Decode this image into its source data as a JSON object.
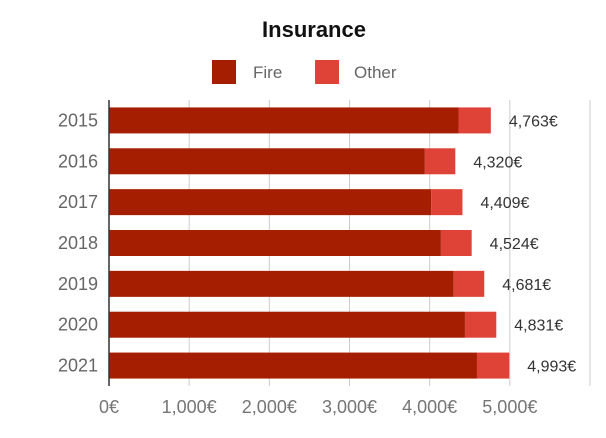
{
  "chart_data": {
    "type": "bar",
    "orientation": "horizontal",
    "stacked": true,
    "title": "Insurance",
    "categories": [
      "2015",
      "2016",
      "2017",
      "2018",
      "2019",
      "2020",
      "2021"
    ],
    "series": [
      {
        "name": "Fire",
        "color": "#a51e01",
        "values": [
          4360,
          3940,
          4020,
          4140,
          4300,
          4440,
          4590
        ]
      },
      {
        "name": "Other",
        "color": "#df4338",
        "values": [
          403,
          380,
          389,
          384,
          381,
          391,
          403
        ]
      }
    ],
    "totals": [
      4763,
      4320,
      4409,
      4524,
      4681,
      4831,
      4993
    ],
    "total_labels": [
      "4,763€",
      "4,320€",
      "4,409€",
      "4,524€",
      "4,681€",
      "4,831€",
      "4,993€"
    ],
    "xlim": [
      0,
      6000
    ],
    "x_ticks": [
      0,
      1000,
      2000,
      3000,
      4000,
      5000
    ],
    "x_tick_labels": [
      "0€",
      "1,000€",
      "2,000€",
      "3,000€",
      "4,000€",
      "5,000€"
    ],
    "grid": true,
    "legend_position": "top-center",
    "xlabel": "",
    "ylabel": ""
  }
}
